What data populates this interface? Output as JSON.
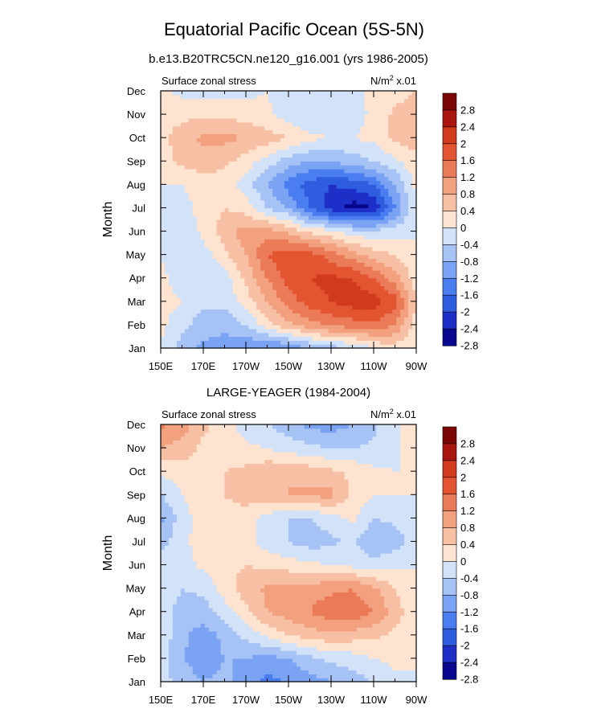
{
  "figure": {
    "title": "Equatorial Pacific Ocean (5S-5N)"
  },
  "colors": {
    "scale": [
      "#08088f",
      "#1e2fc8",
      "#2f5ddf",
      "#4a7df0",
      "#7aa3f3",
      "#a7c3f5",
      "#d2e2f8",
      "#fde3d0",
      "#f7c0a4",
      "#f2a07e",
      "#eb7b58",
      "#e35530",
      "#d13a1c",
      "#a8160f",
      "#7a0606"
    ]
  },
  "chart_data": [
    {
      "type": "heatmap",
      "panel_title": "b.e13.B20TRC5CN.ne120_g16.001 (yrs 1986-2005)",
      "left_label": "Surface zonal stress",
      "units": "N/m² x.01",
      "units_base": "N/m",
      "units_sup": "2",
      "units_tail": " x.01",
      "ylabel": "Month",
      "xlabel": "",
      "x_tick_labels": [
        "150E",
        "170E",
        "170W",
        "150W",
        "130W",
        "110W",
        "90W"
      ],
      "x_ticks_deg": [
        150,
        170,
        190,
        210,
        230,
        250,
        270
      ],
      "xlim": [
        150,
        270
      ],
      "y_tick_labels": [
        "Jan",
        "Feb",
        "Mar",
        "Apr",
        "May",
        "Jun",
        "Jul",
        "Aug",
        "Sep",
        "Oct",
        "Nov",
        "Dec"
      ],
      "colorbar_levels": [
        -2.8,
        -2.4,
        -2,
        -1.6,
        -1.2,
        -0.8,
        -0.4,
        0,
        0.4,
        0.8,
        1.2,
        1.6,
        2,
        2.4,
        2.8
      ],
      "colorbar_labels": [
        "2.8",
        "2.4",
        "2",
        "1.6",
        "1.2",
        "0.8",
        "0.4",
        "0",
        "-0.4",
        "-0.8",
        "-1.2",
        "-1.6",
        "-2",
        "-2.4",
        "-2.8"
      ],
      "grid": {
        "lons": [
          150,
          160,
          170,
          180,
          190,
          200,
          210,
          220,
          230,
          240,
          250,
          260,
          270
        ],
        "months": [
          "Jan",
          "Feb",
          "Mar",
          "Apr",
          "May",
          "Jun",
          "Jul",
          "Aug",
          "Sep",
          "Oct",
          "Nov",
          "Dec"
        ],
        "values": [
          [
            0.0,
            -0.6,
            -0.9,
            -1.0,
            -1.2,
            -1.3,
            -1.2,
            -0.8,
            -0.6,
            -0.4,
            0.0,
            0.2,
            0.0
          ],
          [
            0.1,
            -0.3,
            -0.6,
            -0.7,
            -0.4,
            0.2,
            0.7,
            1.0,
            1.3,
            1.4,
            1.5,
            1.2,
            0.2
          ],
          [
            0.2,
            0.0,
            -0.3,
            -0.3,
            0.2,
            0.8,
            1.4,
            1.8,
            2.0,
            2.2,
            2.2,
            1.8,
            0.4
          ],
          [
            0.1,
            -0.2,
            -0.3,
            -0.2,
            0.5,
            1.2,
            1.8,
            2.0,
            2.1,
            2.0,
            1.6,
            1.0,
            0.2
          ],
          [
            0.0,
            -0.3,
            -0.2,
            0.3,
            0.8,
            1.6,
            1.9,
            1.8,
            1.4,
            1.0,
            0.6,
            0.4,
            0.0
          ],
          [
            0.0,
            -0.3,
            0.1,
            0.6,
            1.0,
            1.0,
            0.7,
            0.3,
            0.1,
            -0.2,
            -0.3,
            -0.2,
            0.0
          ],
          [
            0.0,
            -0.2,
            0.2,
            0.4,
            0.2,
            -0.4,
            -0.8,
            -1.6,
            -2.2,
            -2.6,
            -2.4,
            -1.2,
            0.0
          ],
          [
            0.0,
            0.0,
            0.2,
            0.2,
            -0.2,
            -0.8,
            -1.4,
            -1.8,
            -2.0,
            -1.9,
            -1.6,
            -0.8,
            0.1
          ],
          [
            0.2,
            0.5,
            0.6,
            0.5,
            0.2,
            -0.2,
            -0.6,
            -0.8,
            -0.8,
            -0.6,
            -0.4,
            -0.1,
            0.3
          ],
          [
            0.3,
            0.6,
            0.9,
            0.9,
            0.8,
            0.6,
            0.4,
            0.1,
            0.0,
            0.0,
            0.1,
            0.5,
            0.6
          ],
          [
            0.2,
            0.3,
            0.3,
            0.3,
            0.2,
            0.1,
            -0.2,
            -0.4,
            -0.4,
            -0.2,
            0.1,
            0.5,
            0.7
          ],
          [
            0.1,
            -0.1,
            -0.2,
            -0.2,
            -0.1,
            0.0,
            -0.3,
            -0.4,
            -0.3,
            -0.1,
            0.1,
            0.2,
            0.4
          ]
        ]
      }
    },
    {
      "type": "heatmap",
      "panel_title": "LARGE-YEAGER (1984-2004)",
      "left_label": "Surface zonal stress",
      "units": "N/m² x.01",
      "units_base": "N/m",
      "units_sup": "2",
      "units_tail": " x.01",
      "ylabel": "Month",
      "xlabel": "",
      "x_tick_labels": [
        "150E",
        "170E",
        "170W",
        "150W",
        "130W",
        "110W",
        "90W"
      ],
      "x_ticks_deg": [
        150,
        170,
        190,
        210,
        230,
        250,
        270
      ],
      "xlim": [
        150,
        270
      ],
      "y_tick_labels": [
        "Jan",
        "Feb",
        "Mar",
        "Apr",
        "May",
        "Jun",
        "Jul",
        "Aug",
        "Sep",
        "Oct",
        "Nov",
        "Dec"
      ],
      "colorbar_levels": [
        -2.8,
        -2.4,
        -2,
        -1.6,
        -1.2,
        -0.8,
        -0.4,
        0,
        0.4,
        0.8,
        1.2,
        1.6,
        2,
        2.4,
        2.8
      ],
      "colorbar_labels": [
        "2.8",
        "2.4",
        "2",
        "1.6",
        "1.2",
        "0.8",
        "0.4",
        "0",
        "-0.4",
        "-0.8",
        "-1.2",
        "-1.6",
        "-2",
        "-2.4",
        "-2.8"
      ],
      "grid": {
        "lons": [
          150,
          160,
          170,
          180,
          190,
          200,
          210,
          220,
          230,
          240,
          250,
          260,
          270
        ],
        "months": [
          "Jan",
          "Feb",
          "Mar",
          "Apr",
          "May",
          "Jun",
          "Jul",
          "Aug",
          "Sep",
          "Oct",
          "Nov",
          "Dec"
        ],
        "values": [
          [
            -0.2,
            -0.6,
            -0.8,
            -0.7,
            -1.0,
            -1.3,
            -1.2,
            -1.0,
            -0.8,
            -0.6,
            -0.4,
            -0.1,
            0.0
          ],
          [
            -0.2,
            -0.8,
            -1.0,
            -0.8,
            -0.8,
            -1.0,
            -0.8,
            -0.5,
            -0.3,
            -0.2,
            0.0,
            0.1,
            0.0
          ],
          [
            -0.1,
            -0.7,
            -1.0,
            -0.7,
            -0.3,
            0.1,
            0.4,
            0.6,
            0.7,
            0.6,
            0.5,
            0.3,
            0.0
          ],
          [
            -0.2,
            -0.6,
            -0.6,
            -0.2,
            0.3,
            0.8,
            1.0,
            1.2,
            1.5,
            1.5,
            1.2,
            0.6,
            0.1
          ],
          [
            -0.1,
            -0.4,
            -0.3,
            0.2,
            0.6,
            0.9,
            1.0,
            1.0,
            1.1,
            1.2,
            0.9,
            0.4,
            0.0
          ],
          [
            0.0,
            -0.2,
            0.1,
            0.3,
            0.4,
            0.3,
            0.2,
            0.1,
            0.0,
            -0.1,
            -0.2,
            -0.1,
            0.0
          ],
          [
            -0.6,
            -0.1,
            0.2,
            0.3,
            0.2,
            -0.2,
            -0.4,
            -0.6,
            -0.5,
            -0.3,
            -0.8,
            -0.6,
            -0.2
          ],
          [
            -0.9,
            -0.2,
            0.2,
            0.3,
            0.3,
            -0.2,
            -0.4,
            -0.4,
            -0.2,
            0.1,
            -0.4,
            -0.3,
            -0.1
          ],
          [
            -0.4,
            0.0,
            0.3,
            0.4,
            0.5,
            0.7,
            0.8,
            0.9,
            0.9,
            0.3,
            0.0,
            0.0,
            0.0
          ],
          [
            0.1,
            0.2,
            0.4,
            0.4,
            0.5,
            0.7,
            0.8,
            0.6,
            0.5,
            0.3,
            0.1,
            0.0,
            0.0
          ],
          [
            0.8,
            0.6,
            0.3,
            0.2,
            0.1,
            0.0,
            -0.2,
            -0.3,
            -0.4,
            -0.4,
            -0.3,
            -0.1,
            0.2
          ],
          [
            1.3,
            1.0,
            0.5,
            0.2,
            -0.2,
            -0.4,
            -0.6,
            -0.9,
            -1.0,
            -0.8,
            -0.5,
            -0.1,
            0.4
          ]
        ]
      }
    }
  ]
}
